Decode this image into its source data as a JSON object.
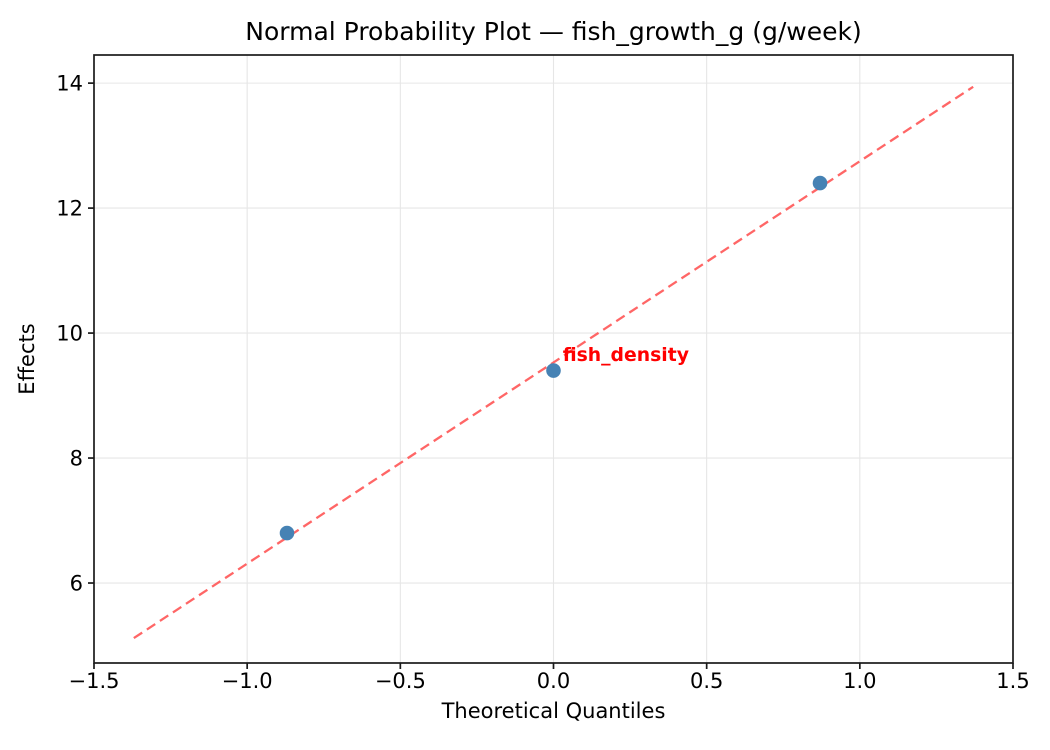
{
  "chart_data": {
    "type": "scatter",
    "title": "Normal Probability Plot — fish_growth_g (g/week)",
    "xlabel": "Theoretical Quantiles",
    "ylabel": "Effects",
    "xlim": [
      -1.5,
      1.5
    ],
    "ylim": [
      4.72,
      14.45
    ],
    "grid": true,
    "legend_position": "none",
    "xtick_values": [
      -1.5,
      -1.0,
      -0.5,
      0.0,
      0.5,
      1.0,
      1.5
    ],
    "xtick_labels": [
      "−1.5",
      "−1.0",
      "−0.5",
      "0.0",
      "0.5",
      "1.0",
      "1.5"
    ],
    "ytick_values": [
      6,
      8,
      10,
      12,
      14
    ],
    "ytick_labels": [
      "6",
      "8",
      "10",
      "12",
      "14"
    ],
    "series": [
      {
        "name": "effects-points",
        "marker": "circle",
        "points": [
          {
            "x": -0.87,
            "y": 6.8
          },
          {
            "x": 0.0,
            "y": 9.4
          },
          {
            "x": 0.87,
            "y": 12.4
          }
        ]
      }
    ],
    "fit_line": {
      "style": "dashed",
      "slope": 3.22,
      "intercept": 9.53,
      "x_start": -1.37,
      "x_end": 1.37
    },
    "annotation": {
      "text": "fish_density",
      "x": 0.03,
      "y": 9.55
    },
    "colors": {
      "marker": "#4682b4",
      "fit_line": "#ff6666",
      "annotation": "#ff0000",
      "grid": "#e6e6e6",
      "spine": "#1a1a1a",
      "tick_text": "#000000",
      "background": "#ffffff"
    }
  }
}
